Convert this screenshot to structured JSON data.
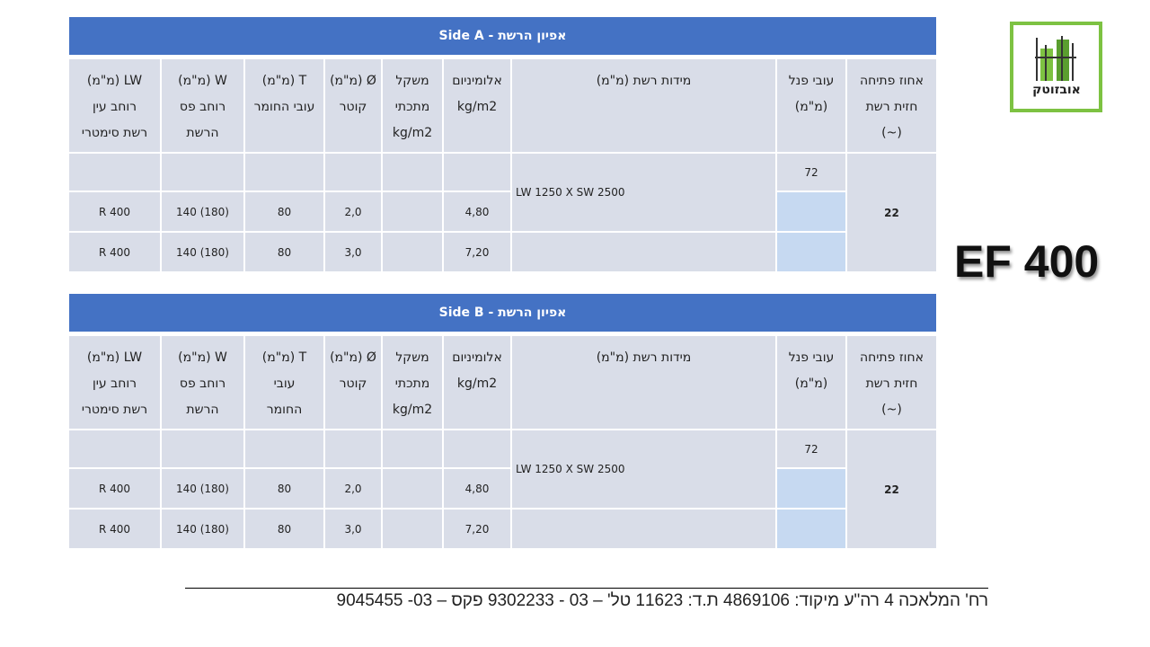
{
  "logo": {
    "text": "אובזוטק"
  },
  "product": "EF 400",
  "tables": [
    {
      "title": "אפיון הרשת  -  Side A",
      "headers": [
        [
          "אחוז פתיחה",
          "חזית רשת",
          "(~)"
        ],
        [
          "עובי פנל",
          "(מ\"מ)"
        ],
        [
          "מידות רשת (מ\"מ)"
        ],
        [
          "אלומיניום",
          "kg/m2"
        ],
        [
          "משקל",
          "מתכתי",
          "kg/m2"
        ],
        [
          "Ø (מ\"מ)",
          "קוטר"
        ],
        [
          "T (מ\"מ)",
          "עובי החומר"
        ],
        [
          "W (מ\"מ)",
          "רוחב פס",
          "הרשת"
        ],
        [
          "LW (מ\"מ)",
          "רוחב עין",
          "רשת סימטרי"
        ]
      ],
      "opening": "22",
      "panel": "72",
      "mesh_size": "LW 1250 X SW 2500",
      "rows": [
        {
          "aluminium": "4,80",
          "diameter": "2,0",
          "thickness": "80",
          "w": "140 (180)",
          "lw": "R 400"
        },
        {
          "aluminium": "7,20",
          "diameter": "3,0",
          "thickness": "80",
          "w": "140 (180)",
          "lw": "R 400"
        }
      ]
    },
    {
      "title": "אפיון הרשת  -  Side B",
      "headers": [
        [
          "אחוז פתיחה",
          "חזית רשת",
          "(~)"
        ],
        [
          "עובי פנל",
          "(מ\"מ)"
        ],
        [
          "מידות רשת (מ\"מ)"
        ],
        [
          "אלומיניום",
          "kg/m2"
        ],
        [
          "משקל",
          "מתכתי",
          "kg/m2"
        ],
        [
          "Ø (מ\"מ)",
          "קוטר"
        ],
        [
          "T (מ\"מ)",
          "עובי",
          "החומר"
        ],
        [
          "W (מ\"מ)",
          "רוחב פס",
          "הרשת"
        ],
        [
          "LW (מ\"מ)",
          "רוחב עין",
          "רשת סימטרי"
        ]
      ],
      "opening": "22",
      "panel": "72",
      "mesh_size": "LW 1250 X SW 2500",
      "rows": [
        {
          "aluminium": "4,80",
          "diameter": "2,0",
          "thickness": "80",
          "w": "140 (180)",
          "lw": "R 400"
        },
        {
          "aluminium": "7,20",
          "diameter": "3,0",
          "thickness": "80",
          "w": "140 (180)",
          "lw": "R 400"
        }
      ]
    }
  ],
  "footer": "רח' המלאכה 4 רה\"ע מיקוד: 4869106  ת.ד: 11623  טל' – 03 - 9302233    פקס – 03- 9045455"
}
